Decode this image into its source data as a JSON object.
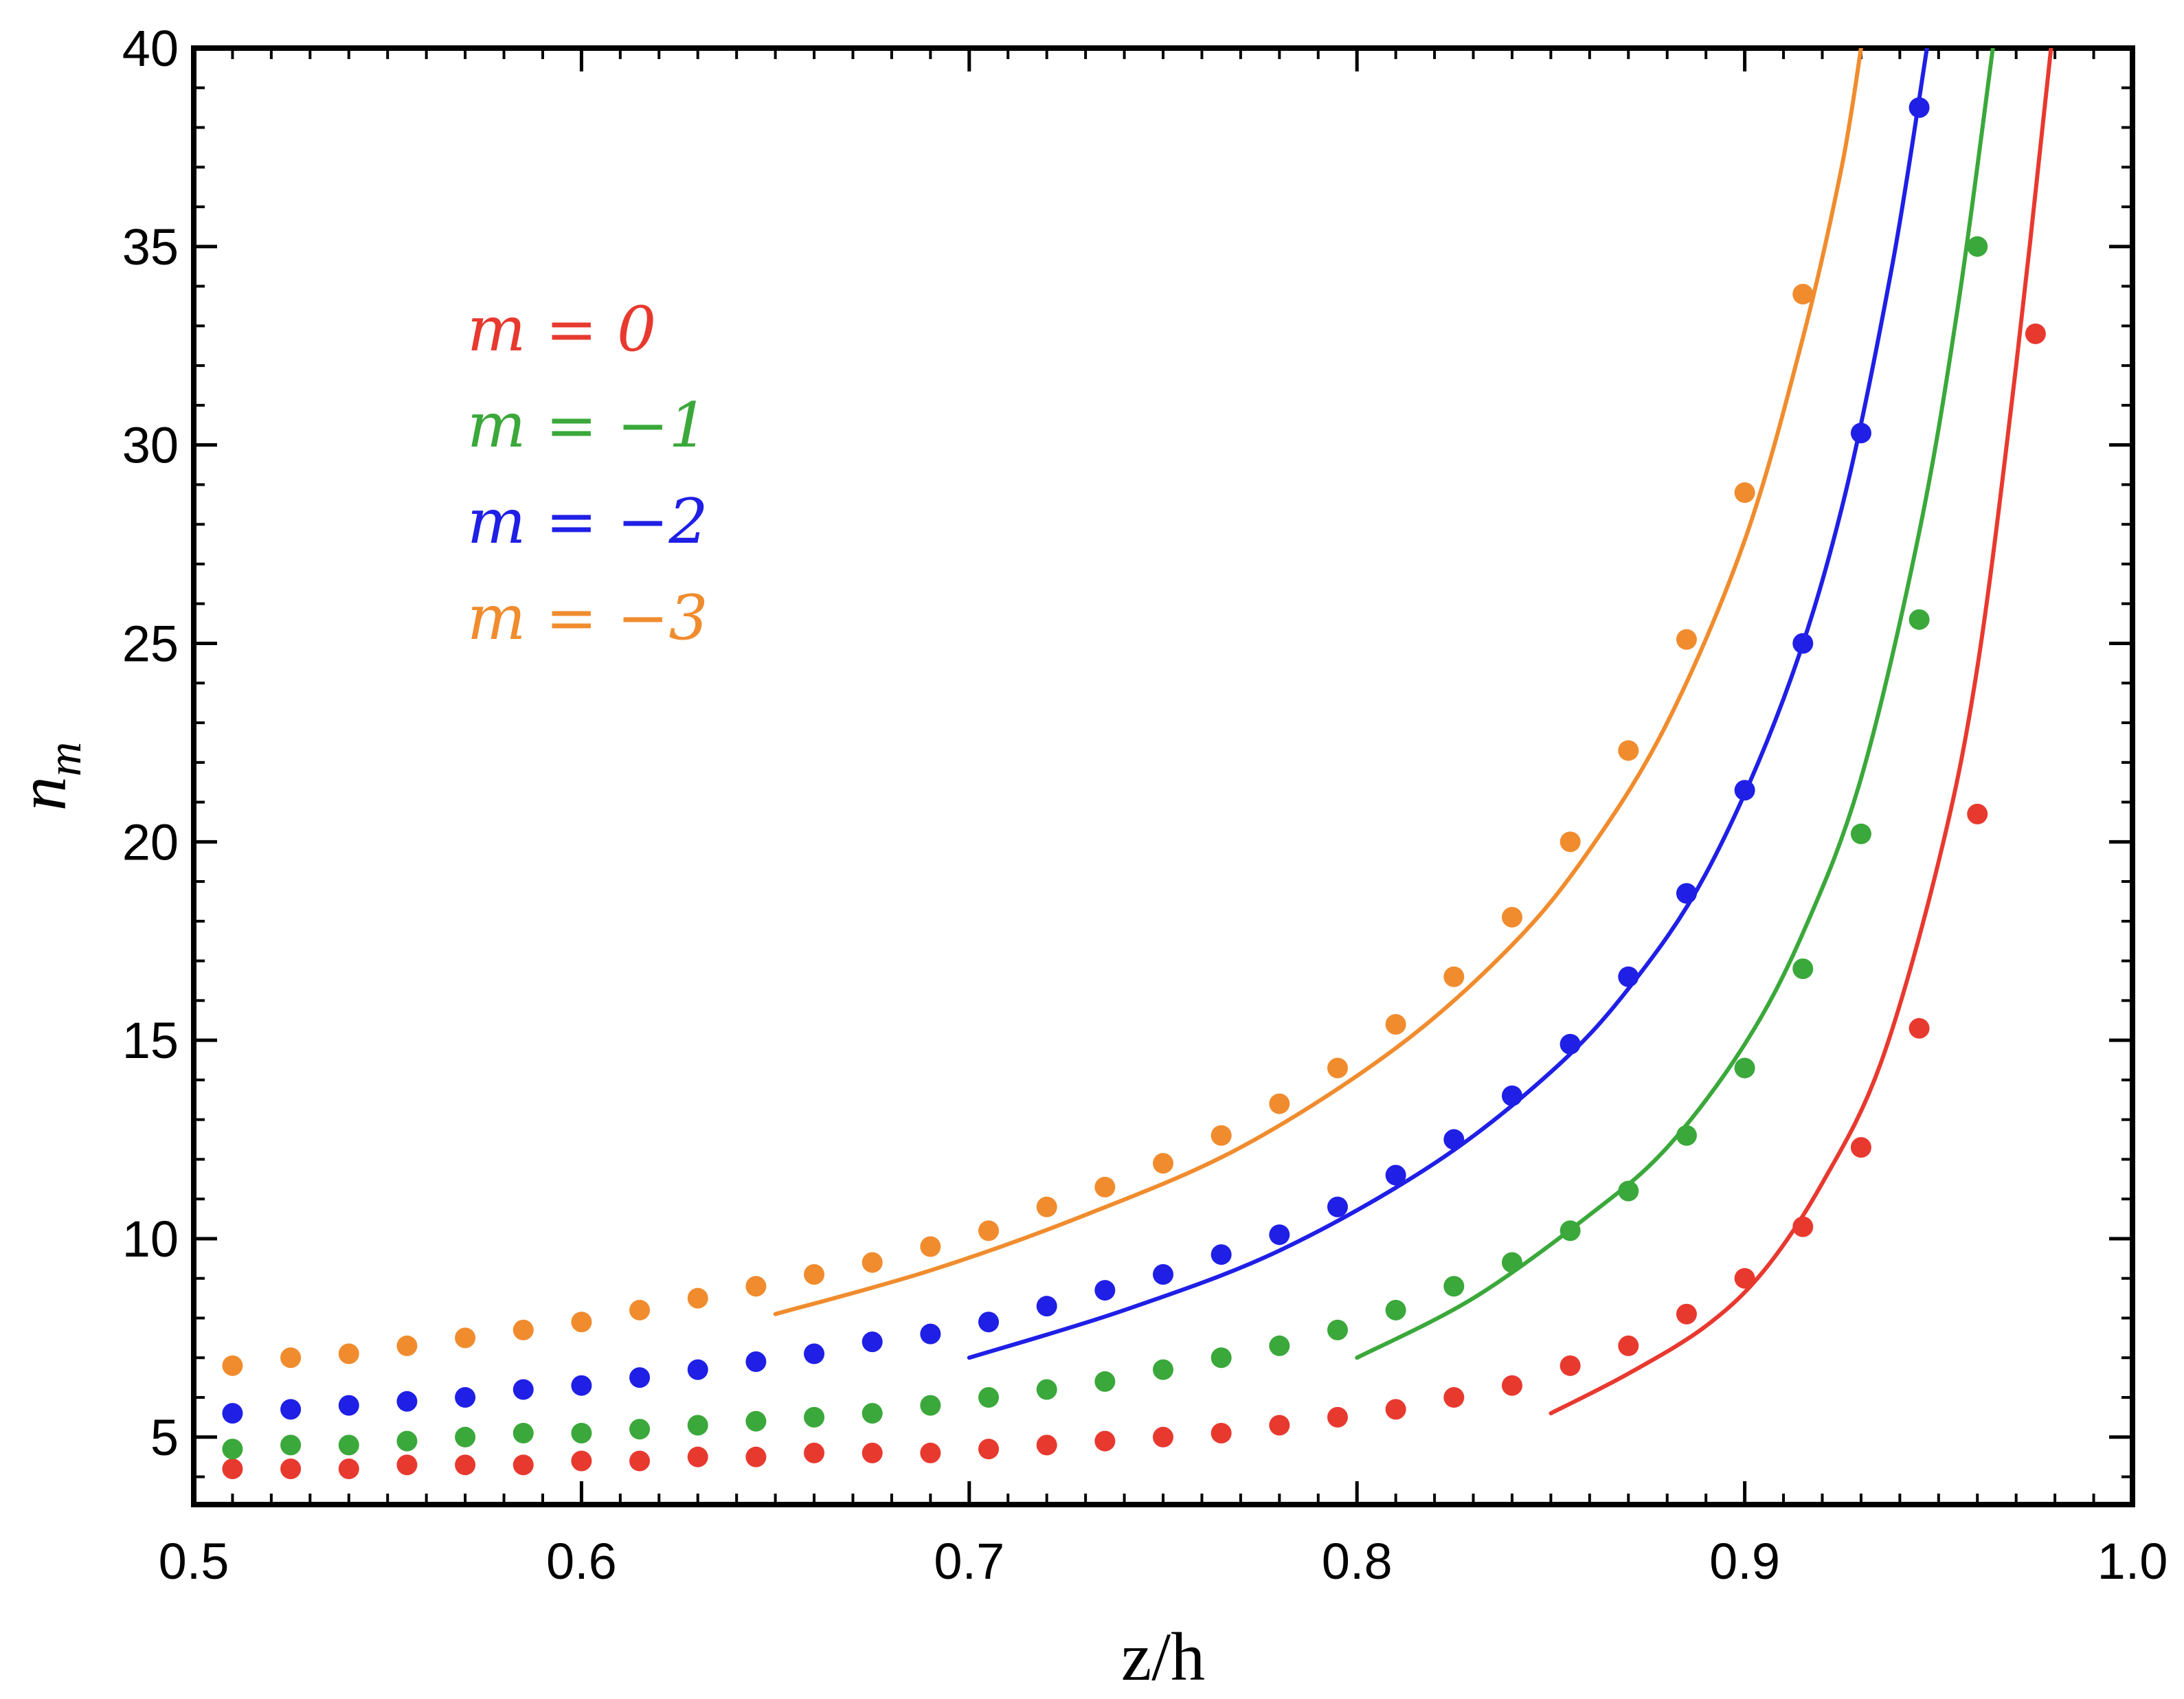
{
  "chart_data": {
    "type": "scatter",
    "title": "",
    "xlabel": "z/h",
    "ylabel": "n_m",
    "ylabel_base": "n",
    "ylabel_sub": "m",
    "xlim": [
      0.5,
      1.0
    ],
    "ylim": [
      3.3,
      40
    ],
    "x_ticks": [
      0.5,
      0.6,
      0.7,
      0.8,
      0.9,
      1.0
    ],
    "x_tick_labels": [
      "0.5",
      "0.6",
      "0.7",
      "0.8",
      "0.9",
      "1.0"
    ],
    "y_ticks": [
      5,
      10,
      15,
      20,
      25,
      30,
      35,
      40
    ],
    "y_tick_labels": [
      "5",
      "10",
      "15",
      "20",
      "25",
      "30",
      "35",
      "40"
    ],
    "grid": false,
    "legend_position": "top-left",
    "series": [
      {
        "name": "m = 0",
        "color": "#e8392f",
        "points": [
          [
            0.51,
            4.2
          ],
          [
            0.525,
            4.2
          ],
          [
            0.54,
            4.2
          ],
          [
            0.555,
            4.3
          ],
          [
            0.57,
            4.3
          ],
          [
            0.585,
            4.3
          ],
          [
            0.6,
            4.4
          ],
          [
            0.615,
            4.4
          ],
          [
            0.63,
            4.5
          ],
          [
            0.645,
            4.5
          ],
          [
            0.66,
            4.6
          ],
          [
            0.675,
            4.6
          ],
          [
            0.69,
            4.6
          ],
          [
            0.705,
            4.7
          ],
          [
            0.72,
            4.8
          ],
          [
            0.735,
            4.9
          ],
          [
            0.75,
            5.0
          ],
          [
            0.765,
            5.1
          ],
          [
            0.78,
            5.3
          ],
          [
            0.795,
            5.5
          ],
          [
            0.81,
            5.7
          ],
          [
            0.825,
            6.0
          ],
          [
            0.84,
            6.3
          ],
          [
            0.855,
            6.8
          ],
          [
            0.87,
            7.3
          ],
          [
            0.885,
            8.1
          ],
          [
            0.9,
            9.0
          ],
          [
            0.915,
            10.3
          ],
          [
            0.93,
            12.3
          ],
          [
            0.945,
            15.3
          ],
          [
            0.96,
            20.7
          ],
          [
            0.975,
            32.8
          ]
        ],
        "curve": [
          [
            0.85,
            5.6
          ],
          [
            0.87,
            6.6
          ],
          [
            0.89,
            7.8
          ],
          [
            0.905,
            9.2
          ],
          [
            0.92,
            11.4
          ],
          [
            0.935,
            14.4
          ],
          [
            0.95,
            19.5
          ],
          [
            0.96,
            24.4
          ],
          [
            0.97,
            32.0
          ],
          [
            0.979,
            40.0
          ]
        ]
      },
      {
        "name": "m = −1",
        "color": "#3aa83a",
        "points": [
          [
            0.51,
            4.7
          ],
          [
            0.525,
            4.8
          ],
          [
            0.54,
            4.8
          ],
          [
            0.555,
            4.9
          ],
          [
            0.57,
            5.0
          ],
          [
            0.585,
            5.1
          ],
          [
            0.6,
            5.1
          ],
          [
            0.615,
            5.2
          ],
          [
            0.63,
            5.3
          ],
          [
            0.645,
            5.4
          ],
          [
            0.66,
            5.5
          ],
          [
            0.675,
            5.6
          ],
          [
            0.69,
            5.8
          ],
          [
            0.705,
            6.0
          ],
          [
            0.72,
            6.2
          ],
          [
            0.735,
            6.4
          ],
          [
            0.75,
            6.7
          ],
          [
            0.765,
            7.0
          ],
          [
            0.78,
            7.3
          ],
          [
            0.795,
            7.7
          ],
          [
            0.81,
            8.2
          ],
          [
            0.825,
            8.8
          ],
          [
            0.84,
            9.4
          ],
          [
            0.855,
            10.2
          ],
          [
            0.87,
            11.2
          ],
          [
            0.885,
            12.6
          ],
          [
            0.9,
            14.3
          ],
          [
            0.915,
            16.8
          ],
          [
            0.93,
            20.2
          ],
          [
            0.945,
            25.6
          ],
          [
            0.96,
            35.0
          ]
        ],
        "curve": [
          [
            0.8,
            7.0
          ],
          [
            0.83,
            8.5
          ],
          [
            0.86,
            10.6
          ],
          [
            0.88,
            12.3
          ],
          [
            0.9,
            14.9
          ],
          [
            0.915,
            17.7
          ],
          [
            0.93,
            21.6
          ],
          [
            0.945,
            27.8
          ],
          [
            0.955,
            33.5
          ],
          [
            0.964,
            40.0
          ]
        ]
      },
      {
        "name": "m = −2",
        "color": "#1f1fe6",
        "points": [
          [
            0.51,
            5.6
          ],
          [
            0.525,
            5.7
          ],
          [
            0.54,
            5.8
          ],
          [
            0.555,
            5.9
          ],
          [
            0.57,
            6.0
          ],
          [
            0.585,
            6.2
          ],
          [
            0.6,
            6.3
          ],
          [
            0.615,
            6.5
          ],
          [
            0.63,
            6.7
          ],
          [
            0.645,
            6.9
          ],
          [
            0.66,
            7.1
          ],
          [
            0.675,
            7.4
          ],
          [
            0.69,
            7.6
          ],
          [
            0.705,
            7.9
          ],
          [
            0.72,
            8.3
          ],
          [
            0.735,
            8.7
          ],
          [
            0.75,
            9.1
          ],
          [
            0.765,
            9.6
          ],
          [
            0.78,
            10.1
          ],
          [
            0.795,
            10.8
          ],
          [
            0.81,
            11.6
          ],
          [
            0.825,
            12.5
          ],
          [
            0.84,
            13.6
          ],
          [
            0.855,
            14.9
          ],
          [
            0.87,
            16.6
          ],
          [
            0.885,
            18.7
          ],
          [
            0.9,
            21.3
          ],
          [
            0.915,
            25.0
          ],
          [
            0.93,
            30.3
          ],
          [
            0.945,
            38.5
          ]
        ],
        "curve": [
          [
            0.7,
            7.0
          ],
          [
            0.74,
            8.2
          ],
          [
            0.78,
            9.7
          ],
          [
            0.82,
            11.9
          ],
          [
            0.85,
            14.2
          ],
          [
            0.87,
            16.3
          ],
          [
            0.89,
            19.2
          ],
          [
            0.91,
            23.6
          ],
          [
            0.925,
            28.4
          ],
          [
            0.938,
            34.5
          ],
          [
            0.947,
            40.0
          ]
        ]
      },
      {
        "name": "m = −3",
        "color": "#f08c2e",
        "points": [
          [
            0.51,
            6.8
          ],
          [
            0.525,
            7.0
          ],
          [
            0.54,
            7.1
          ],
          [
            0.555,
            7.3
          ],
          [
            0.57,
            7.5
          ],
          [
            0.585,
            7.7
          ],
          [
            0.6,
            7.9
          ],
          [
            0.615,
            8.2
          ],
          [
            0.63,
            8.5
          ],
          [
            0.645,
            8.8
          ],
          [
            0.66,
            9.1
          ],
          [
            0.675,
            9.4
          ],
          [
            0.69,
            9.8
          ],
          [
            0.705,
            10.2
          ],
          [
            0.72,
            10.8
          ],
          [
            0.735,
            11.3
          ],
          [
            0.75,
            11.9
          ],
          [
            0.765,
            12.6
          ],
          [
            0.78,
            13.4
          ],
          [
            0.795,
            14.3
          ],
          [
            0.81,
            15.4
          ],
          [
            0.825,
            16.6
          ],
          [
            0.84,
            18.1
          ],
          [
            0.855,
            20.0
          ],
          [
            0.87,
            22.3
          ],
          [
            0.885,
            25.1
          ],
          [
            0.9,
            28.8
          ],
          [
            0.915,
            33.8
          ]
        ],
        "curve": [
          [
            0.65,
            8.1
          ],
          [
            0.69,
            9.2
          ],
          [
            0.73,
            10.6
          ],
          [
            0.77,
            12.3
          ],
          [
            0.81,
            14.8
          ],
          [
            0.84,
            17.4
          ],
          [
            0.86,
            19.8
          ],
          [
            0.88,
            23.0
          ],
          [
            0.9,
            27.6
          ],
          [
            0.915,
            32.7
          ],
          [
            0.925,
            37.0
          ],
          [
            0.93,
            40.0
          ]
        ]
      }
    ]
  }
}
